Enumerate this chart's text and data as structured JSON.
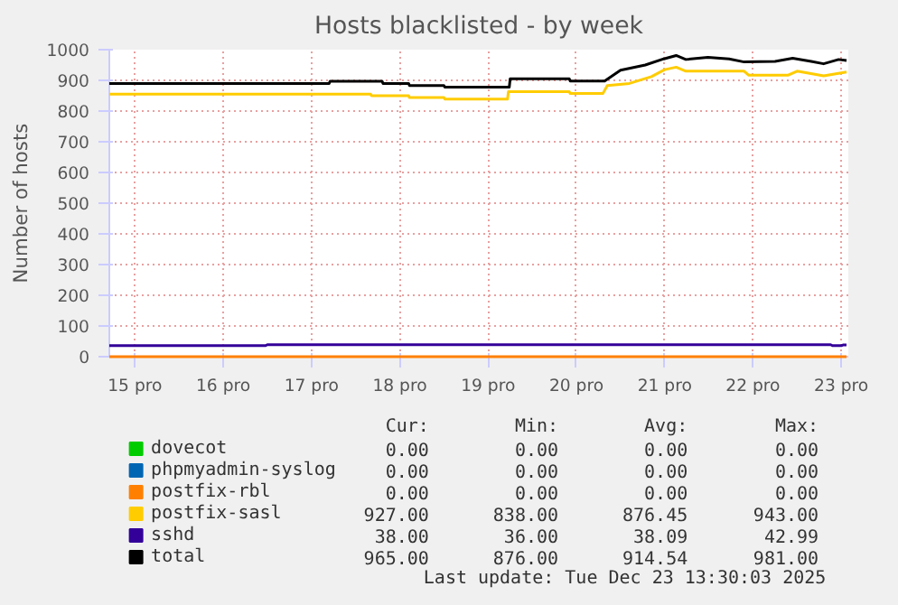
{
  "chart_data": {
    "type": "line",
    "title": "Hosts blacklisted - by week",
    "ylabel": "Number of hosts",
    "xlim": [
      14.71,
      23.08
    ],
    "ylim": [
      0,
      1000
    ],
    "xticks": [
      {
        "value": 15,
        "label": "15 pro"
      },
      {
        "value": 16,
        "label": "16 pro"
      },
      {
        "value": 17,
        "label": "17 pro"
      },
      {
        "value": 18,
        "label": "18 pro"
      },
      {
        "value": 19,
        "label": "19 pro"
      },
      {
        "value": 20,
        "label": "20 pro"
      },
      {
        "value": 21,
        "label": "21 pro"
      },
      {
        "value": 22,
        "label": "22 pro"
      },
      {
        "value": 23,
        "label": "23 pro"
      }
    ],
    "yticks": [
      0,
      100,
      200,
      300,
      400,
      500,
      600,
      700,
      800,
      900,
      1000
    ],
    "grid": true,
    "legend": "bottom",
    "series": [
      {
        "name": "dovecot",
        "color": "#00cc00"
      },
      {
        "name": "phpmyadmin-syslog",
        "color": "#0066b3"
      },
      {
        "name": "postfix-rbl",
        "color": "#ff8000",
        "x": [
          14.71,
          23.06
        ],
        "values": [
          0,
          0
        ]
      },
      {
        "name": "postfix-sasl",
        "color": "#ffcc00",
        "x": [
          14.71,
          17.67,
          17.68,
          18.1,
          18.11,
          18.5,
          18.51,
          19.22,
          19.23,
          19.92,
          19.93,
          20.3,
          20.35,
          20.6,
          20.85,
          21.0,
          21.13,
          21.24,
          21.9,
          21.95,
          22.4,
          22.5,
          22.8,
          23.06
        ],
        "values": [
          855,
          855,
          850,
          850,
          844,
          844,
          839,
          839,
          863,
          863,
          857,
          857,
          883,
          890,
          912,
          935,
          943,
          930,
          930,
          917,
          917,
          930,
          915,
          927
        ]
      },
      {
        "name": "sshd",
        "color": "#330099",
        "x": [
          14.71,
          16.48,
          16.5,
          22.88,
          22.9,
          23.0,
          23.02,
          23.06
        ],
        "values": [
          36,
          36,
          39,
          39,
          36,
          36,
          38,
          38
        ]
      },
      {
        "name": "total",
        "color": "#000000",
        "x": [
          14.71,
          17.2,
          17.21,
          17.8,
          17.81,
          18.1,
          18.11,
          18.5,
          18.51,
          19.24,
          19.25,
          19.92,
          19.93,
          20.32,
          20.5,
          20.78,
          20.99,
          21.13,
          21.24,
          21.49,
          21.73,
          21.9,
          22.25,
          22.45,
          22.66,
          22.8,
          22.97,
          23.06
        ],
        "values": [
          890,
          890,
          897,
          897,
          890,
          890,
          883,
          883,
          878,
          878,
          905,
          905,
          898,
          898,
          933,
          950,
          970,
          981,
          968,
          975,
          970,
          960,
          962,
          972,
          962,
          954,
          968,
          965
        ]
      }
    ],
    "annotations": [
      "Cur:",
      "Min:",
      "Avg:",
      "Max:",
      "0.00",
      "0.00",
      "0.00",
      "0.00",
      "0.00",
      "0.00",
      "0.00",
      "0.00",
      "0.00",
      "0.00",
      "0.00",
      "0.00",
      "927.00",
      "838.00",
      "876.45",
      "943.00",
      "38.00",
      "36.00",
      "38.09",
      "42.99",
      "965.00",
      "876.00",
      "914.54",
      "981.00",
      "Last update: Tue Dec 23 13:30:03 2025"
    ]
  }
}
